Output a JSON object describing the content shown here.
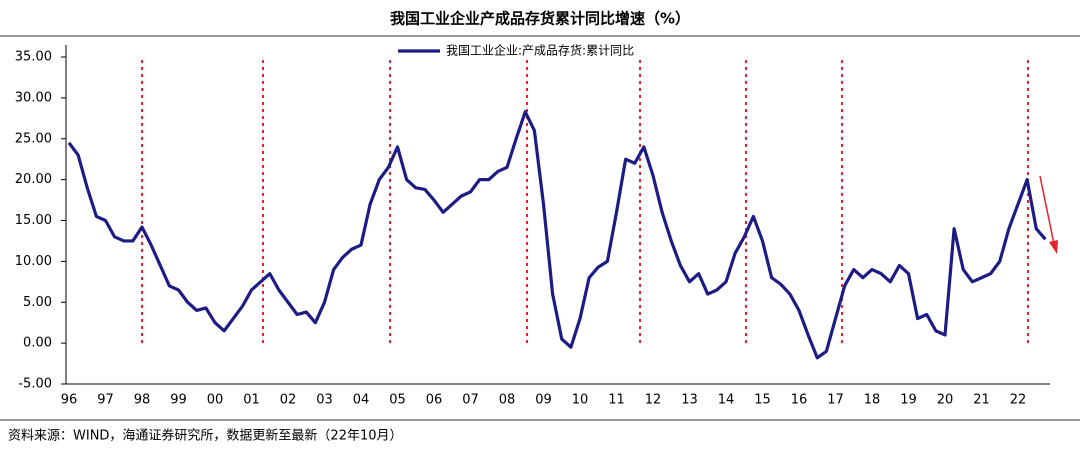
{
  "chart_data": {
    "type": "line",
    "title": "我国工业企业产成品存货累计同比增速（%）",
    "source": "资料来源：WIND，海通证券研究所，数据更新至最新（22年10月）",
    "categories": [
      "96",
      null,
      null,
      null,
      "97",
      null,
      null,
      null,
      "98",
      null,
      null,
      null,
      "99",
      null,
      null,
      null,
      "00",
      null,
      null,
      null,
      "01",
      null,
      null,
      null,
      "02",
      null,
      null,
      null,
      "03",
      null,
      null,
      null,
      "04",
      null,
      null,
      null,
      "05",
      null,
      null,
      null,
      "06",
      null,
      null,
      null,
      "07",
      null,
      null,
      null,
      "08",
      null,
      null,
      null,
      "09",
      null,
      null,
      null,
      "10",
      null,
      null,
      null,
      "11",
      null,
      null,
      null,
      "12",
      null,
      null,
      null,
      "13",
      null,
      null,
      null,
      "14",
      null,
      null,
      null,
      "15",
      null,
      null,
      null,
      "16",
      null,
      null,
      null,
      "17",
      null,
      null,
      null,
      "18",
      null,
      null,
      null,
      "19",
      null,
      null,
      null,
      "20",
      null,
      null,
      null,
      "21",
      null,
      null,
      null,
      "22",
      null,
      null,
      null
    ],
    "series": [
      {
        "name": "我国工业企业:产成品存货:累计同比",
        "color": "#1c1c84",
        "values": [
          24.5,
          23,
          19,
          15.5,
          15,
          13,
          12.5,
          12.5,
          14.2,
          12,
          9.5,
          7,
          6.5,
          5,
          4,
          4.3,
          2.5,
          1.5,
          3,
          4.5,
          6.5,
          7.5,
          8.5,
          6.5,
          5,
          3.5,
          3.8,
          2.5,
          5,
          9,
          10.5,
          11.5,
          12,
          17,
          20,
          21.5,
          24,
          20,
          19,
          18.8,
          17.5,
          16,
          17,
          18,
          18.5,
          20,
          20,
          21,
          21.5,
          25,
          28.3,
          26,
          17,
          6,
          0.5,
          -0.5,
          3,
          8,
          9.3,
          10,
          16,
          22.5,
          22,
          24,
          20.5,
          16,
          12.5,
          9.5,
          7.5,
          8.5,
          6,
          6.5,
          7.5,
          11,
          13,
          15.5,
          12.5,
          8,
          7.2,
          6,
          4,
          1,
          -1.8,
          -1,
          3,
          7,
          9,
          8,
          9,
          8.5,
          7.5,
          9.5,
          8.5,
          3,
          3.5,
          1.5,
          1,
          14,
          9,
          7.5,
          8,
          8.5,
          10,
          14,
          17,
          20,
          14,
          12.7
        ]
      }
    ],
    "ylim": [
      -5,
      35
    ],
    "yticks": [
      {
        "value": 35,
        "label": "35.00"
      },
      {
        "value": 30,
        "label": "30.00"
      },
      {
        "value": 25,
        "label": "25.00"
      },
      {
        "value": 20,
        "label": "20.00"
      },
      {
        "value": 15,
        "label": "15.00"
      },
      {
        "value": 10,
        "label": "10.00"
      },
      {
        "value": 5,
        "label": "5.00"
      },
      {
        "value": 0,
        "label": "0.00"
      },
      {
        "value": -5,
        "label": "-5.00"
      }
    ],
    "legend": "top"
  }
}
